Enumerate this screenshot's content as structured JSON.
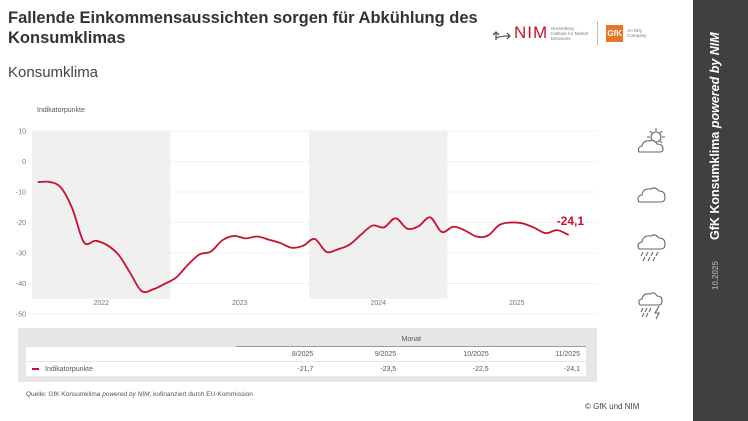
{
  "header": {
    "title": "Fallende Einkommensaussichten sorgen für Abkühlung des Konsumklimas",
    "subtitle": "Konsumklima",
    "logo_nim": "NIM",
    "logo_nim_sub": "Nuremberg Institute for Market Decisions",
    "logo_gfk": "GfK",
    "logo_gfk_sub": "An NIQ Company"
  },
  "sidebar": {
    "brand": "GfK Konsumklima",
    "brand_suffix": "powered by NIM",
    "date": "10.2025",
    "color": "#404040"
  },
  "weather_icons": [
    "sun-cloud-icon",
    "cloud-icon",
    "rain-cloud-icon",
    "thunderstorm-icon"
  ],
  "chart_data": {
    "type": "line",
    "ylabel": "Indikatorpunkte",
    "ylim": [
      -50,
      10
    ],
    "yticks": [
      10,
      0,
      -10,
      -20,
      -30,
      -40,
      -50
    ],
    "year_labels": [
      "2022",
      "2023",
      "2024",
      "2025"
    ],
    "shaded_years": [
      "2022",
      "2024"
    ],
    "grid": true,
    "x_start": "1/2022",
    "x_end": "11/2025",
    "color": "#c8102e",
    "last_value_label": "-24,1",
    "series": [
      {
        "values": [
          -6.8,
          -6.7,
          -8.5,
          -15.5,
          -26.5,
          -26.0,
          -27.4,
          -30.6,
          -36.5,
          -42.5,
          -41.9,
          -40.1,
          -38.0,
          -33.9,
          -30.5,
          -29.5,
          -25.8,
          -24.4,
          -25.2,
          -24.6,
          -25.6,
          -26.7,
          -28.3,
          -27.6,
          -25.4,
          -29.6,
          -28.8,
          -27.3,
          -24.0,
          -21.0,
          -21.6,
          -18.6,
          -22.0,
          -21.2,
          -18.3,
          -23.1,
          -21.4,
          -22.6,
          -24.6,
          -24.3,
          -20.8,
          -20.0,
          -20.3,
          -21.7,
          -23.5,
          -22.5,
          -24.1
        ]
      }
    ]
  },
  "table": {
    "group_header": "Monat",
    "columns": [
      "8/2025",
      "9/2025",
      "10/2025",
      "11/2025"
    ],
    "row_label": "Indikatorpunkte",
    "values": [
      "-21,7",
      "-23,5",
      "-22,5",
      "-24,1"
    ]
  },
  "footer": {
    "source_prefix": "Quelle: GfK Konsumklima ",
    "source_italic": "powered by NIM",
    "source_suffix": ", kofinanziert durch EU-Kommission",
    "copyright": "© GfK und NIM"
  }
}
